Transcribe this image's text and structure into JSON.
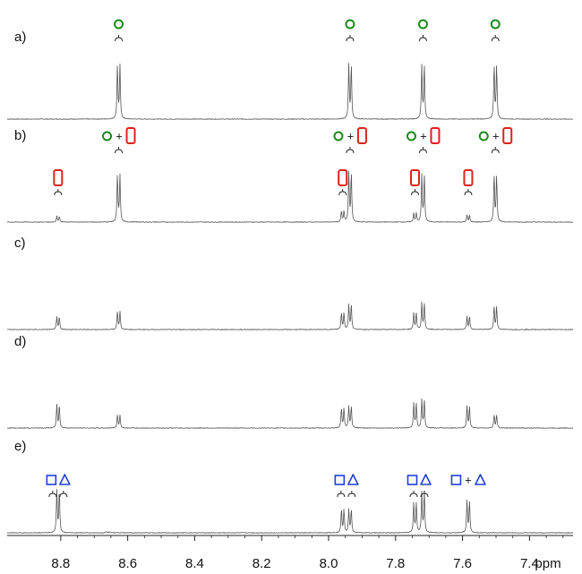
{
  "chart_data": {
    "type": "line",
    "xlabel": "ppm",
    "xlim": [
      8.96,
      7.27
    ],
    "x_reversed": true,
    "ticks": [
      "8.8",
      "8.6",
      "8.4",
      "8.2",
      "8.0",
      "7.8",
      "7.6",
      "7.4"
    ],
    "tick_values": [
      8.8,
      8.6,
      8.4,
      8.2,
      8.0,
      7.8,
      7.6,
      7.4
    ],
    "colors": {
      "circle": "#1a8a1a",
      "rect": "#d9231e",
      "square": "#1f3fd6",
      "triangle": "#1f3fd6",
      "trace": "#555555"
    },
    "spectra": [
      {
        "label": "a)",
        "peaks": [
          {
            "ppm": 8.627,
            "height": 1.0
          },
          {
            "ppm": 7.936,
            "height": 1.0
          },
          {
            "ppm": 7.718,
            "height": 1.0
          },
          {
            "ppm": 7.502,
            "height": 1.0
          }
        ],
        "annotations": [
          {
            "ppm": 8.627,
            "symbols": [
              "circle"
            ],
            "bracket": true
          },
          {
            "ppm": 7.936,
            "symbols": [
              "circle"
            ],
            "bracket": true
          },
          {
            "ppm": 7.718,
            "symbols": [
              "circle"
            ],
            "bracket": true
          },
          {
            "ppm": 7.502,
            "symbols": [
              "circle"
            ],
            "bracket": true
          }
        ]
      },
      {
        "label": "b)",
        "peaks": [
          {
            "ppm": 8.808,
            "height": 0.12
          },
          {
            "ppm": 8.627,
            "height": 0.95
          },
          {
            "ppm": 7.958,
            "height": 0.22
          },
          {
            "ppm": 7.936,
            "height": 1.0
          },
          {
            "ppm": 7.742,
            "height": 0.18
          },
          {
            "ppm": 7.718,
            "height": 0.95
          },
          {
            "ppm": 7.583,
            "height": 0.14
          },
          {
            "ppm": 7.502,
            "height": 0.95
          }
        ],
        "annotations": [
          {
            "ppm": 8.808,
            "symbols": [
              "rect"
            ],
            "bracket": true
          },
          {
            "ppm": 8.627,
            "symbols": [
              "circle",
              "plus",
              "rect"
            ],
            "bracket": true,
            "raised": true
          },
          {
            "ppm": 7.958,
            "symbols": [
              "rect"
            ],
            "bracket": true
          },
          {
            "ppm": 7.936,
            "symbols": [
              "circle",
              "plus",
              "rect"
            ],
            "bracket": true,
            "raised": true
          },
          {
            "ppm": 7.742,
            "symbols": [
              "rect"
            ],
            "bracket": true
          },
          {
            "ppm": 7.718,
            "symbols": [
              "circle",
              "plus",
              "rect"
            ],
            "bracket": true,
            "raised": true
          },
          {
            "ppm": 7.583,
            "symbols": [
              "rect"
            ],
            "bracket": true
          },
          {
            "ppm": 7.502,
            "symbols": [
              "circle",
              "plus",
              "rect"
            ],
            "bracket": true,
            "raised": true
          }
        ]
      },
      {
        "label": "c)",
        "peaks": [
          {
            "ppm": 8.808,
            "height": 0.38
          },
          {
            "ppm": 8.627,
            "height": 0.55
          },
          {
            "ppm": 7.958,
            "height": 0.5
          },
          {
            "ppm": 7.936,
            "height": 0.75
          },
          {
            "ppm": 7.742,
            "height": 0.5
          },
          {
            "ppm": 7.718,
            "height": 0.8
          },
          {
            "ppm": 7.583,
            "height": 0.4
          },
          {
            "ppm": 7.502,
            "height": 0.7
          }
        ],
        "annotations": []
      },
      {
        "label": "d)",
        "peaks": [
          {
            "ppm": 8.808,
            "height": 0.7
          },
          {
            "ppm": 8.627,
            "height": 0.4
          },
          {
            "ppm": 7.958,
            "height": 0.6
          },
          {
            "ppm": 7.936,
            "height": 0.65
          },
          {
            "ppm": 7.742,
            "height": 0.75
          },
          {
            "ppm": 7.718,
            "height": 0.85
          },
          {
            "ppm": 7.583,
            "height": 0.65
          },
          {
            "ppm": 7.502,
            "height": 0.4
          }
        ],
        "annotations": []
      },
      {
        "label": "e)",
        "peaks": [
          {
            "ppm": 8.808,
            "height": 1.0
          },
          {
            "ppm": 8.66,
            "height": 0.03
          },
          {
            "ppm": 7.958,
            "height": 0.55
          },
          {
            "ppm": 7.936,
            "height": 0.55
          },
          {
            "ppm": 7.742,
            "height": 0.7
          },
          {
            "ppm": 7.718,
            "height": 0.95
          },
          {
            "ppm": 7.583,
            "height": 0.75
          }
        ],
        "annotations": [
          {
            "ppm": 8.808,
            "symbols": [
              "square",
              "triangle"
            ],
            "bracket": true,
            "double": true
          },
          {
            "ppm": 7.947,
            "symbols": [
              "square",
              "triangle"
            ],
            "bracket": true,
            "double": true
          },
          {
            "ppm": 7.73,
            "symbols": [
              "square",
              "triangle"
            ],
            "bracket": true,
            "double": true
          },
          {
            "ppm": 7.583,
            "symbols": [
              "square",
              "plus",
              "triangle"
            ],
            "bracket": false
          }
        ]
      }
    ]
  }
}
